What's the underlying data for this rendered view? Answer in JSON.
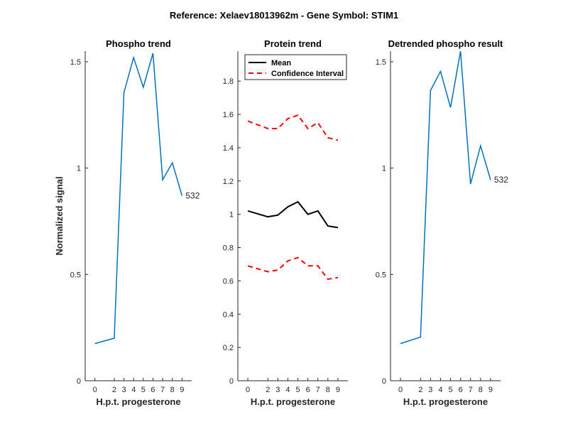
{
  "figure_title": "Reference:  Xelaev18013962m - Gene Symbol:  STIM1",
  "colors": {
    "series": "#0072BD",
    "mean": "#000000",
    "ci": "#FF0000",
    "axis": "#262626"
  },
  "chart_data": [
    {
      "type": "line",
      "title": "Phospho trend",
      "xlabel": "H.p.t. progesterone",
      "ylabel": "Normalized signal",
      "x": [
        0,
        2,
        3,
        4,
        5,
        6,
        7,
        8,
        9
      ],
      "xticklabels": [
        "0",
        "2",
        "3",
        "4",
        "5",
        "6",
        "7",
        "8",
        "9"
      ],
      "ylim": [
        0,
        1.55
      ],
      "yticks": [
        0,
        0.5,
        1,
        1.5
      ],
      "yticklabels": [
        "0",
        "0.5",
        "1",
        "1.5"
      ],
      "series": [
        {
          "name": "532",
          "values": [
            0.175,
            0.2,
            1.355,
            1.52,
            1.38,
            1.54,
            0.945,
            1.025,
            0.87
          ]
        }
      ],
      "end_label": "532"
    },
    {
      "type": "line",
      "title": "Protein trend",
      "xlabel": "H.p.t. progesterone",
      "ylabel": "",
      "x": [
        0,
        2,
        3,
        4,
        5,
        6,
        7,
        8,
        9
      ],
      "xticklabels": [
        "0",
        "2",
        "3",
        "4",
        "5",
        "6",
        "7",
        "8",
        "9"
      ],
      "ylim": [
        0,
        1.98
      ],
      "yticks": [
        0,
        0.2,
        0.4,
        0.6,
        0.8,
        1,
        1.2,
        1.4,
        1.6,
        1.8
      ],
      "yticklabels": [
        "0",
        "0.2",
        "0.4",
        "0.6",
        "0.8",
        "1",
        "1.2",
        "1.4",
        "1.6",
        "1.8"
      ],
      "legend": {
        "position": "top-left",
        "entries": [
          "Mean",
          "Confidence Interval"
        ]
      },
      "series": [
        {
          "name": "Mean",
          "values": [
            1.02,
            0.985,
            0.995,
            1.045,
            1.075,
            1.0,
            1.02,
            0.93,
            0.92
          ]
        },
        {
          "name": "Confidence Interval (upper)",
          "values": [
            1.56,
            1.515,
            1.515,
            1.575,
            1.595,
            1.515,
            1.55,
            1.46,
            1.445
          ]
        },
        {
          "name": "Confidence Interval (lower)",
          "values": [
            0.69,
            0.655,
            0.665,
            0.72,
            0.74,
            0.69,
            0.69,
            0.61,
            0.62
          ]
        }
      ]
    },
    {
      "type": "line",
      "title": "Detrended phospho result",
      "xlabel": "H.p.t. progesterone",
      "ylabel": "",
      "x": [
        0,
        2,
        3,
        4,
        5,
        6,
        7,
        8,
        9
      ],
      "xticklabels": [
        "0",
        "2",
        "3",
        "4",
        "5",
        "6",
        "7",
        "8",
        "9"
      ],
      "ylim": [
        0,
        1.55
      ],
      "yticks": [
        0,
        0.5,
        1,
        1.5
      ],
      "yticklabels": [
        "0",
        "0.5",
        "1",
        "1.5"
      ],
      "series": [
        {
          "name": "532",
          "values": [
            0.175,
            0.205,
            1.365,
            1.455,
            1.285,
            1.55,
            0.925,
            1.105,
            0.945
          ]
        }
      ],
      "end_label": "532"
    }
  ]
}
